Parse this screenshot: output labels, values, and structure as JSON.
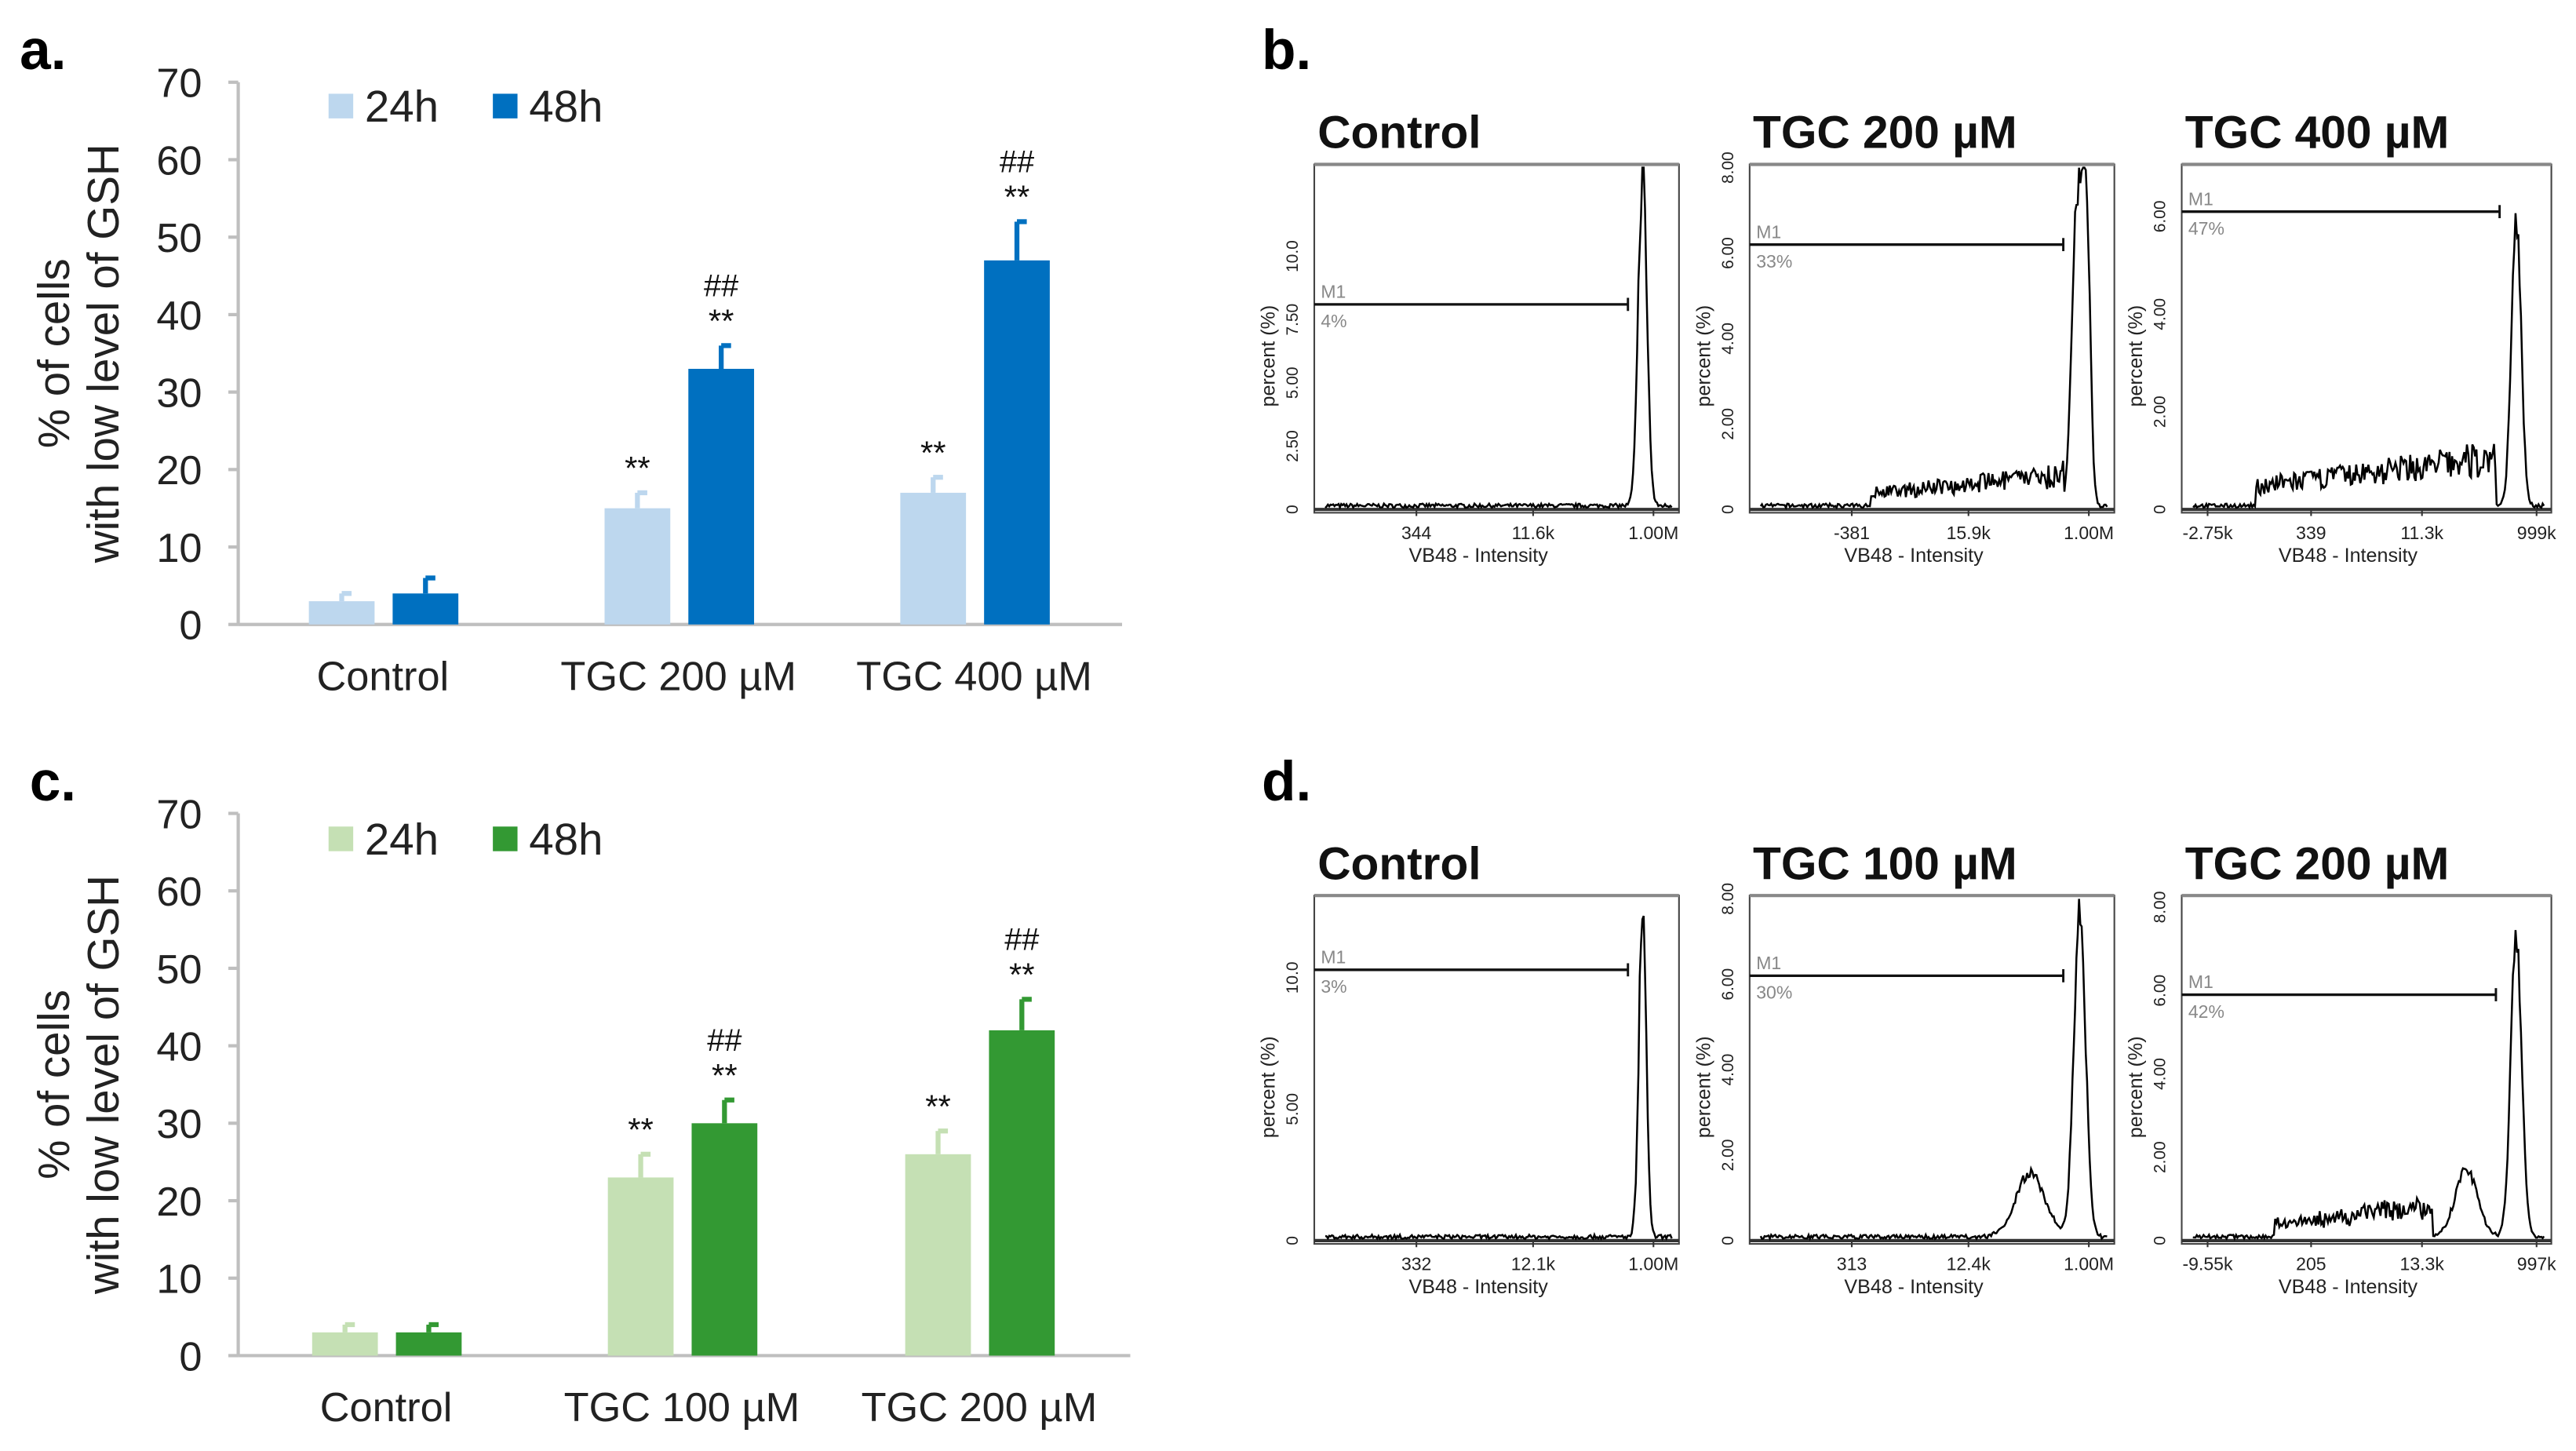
{
  "colors": {
    "a_24h": "#bdd7ee",
    "a_48h": "#0070c0",
    "c_24h": "#c5e0b4",
    "c_48h": "#339933",
    "axis": "#bfbfbf"
  },
  "chart_data": [
    {
      "panel": "a.",
      "type": "bar",
      "ylabel_line1": "% of cells",
      "ylabel_line2": "with low level of GSH",
      "ylim": [
        0,
        70
      ],
      "yticks": [
        "0",
        "10",
        "20",
        "30",
        "40",
        "50",
        "60",
        "70"
      ],
      "categories": [
        "Control",
        "TGC 200 µM",
        "TGC 400 µM"
      ],
      "legend": [
        "24h",
        "48h"
      ],
      "legend_position": "top-left",
      "series": [
        {
          "name": "24h",
          "values": [
            3,
            15,
            17
          ],
          "errors": [
            1,
            2,
            2
          ],
          "annotations": [
            [],
            [
              "**"
            ],
            [
              "**"
            ]
          ]
        },
        {
          "name": "48h",
          "values": [
            4,
            33,
            47
          ],
          "errors": [
            2,
            3,
            5
          ],
          "annotations": [
            [],
            [
              "##",
              "**"
            ],
            [
              "##",
              "**"
            ]
          ]
        }
      ]
    },
    {
      "panel": "c.",
      "type": "bar",
      "ylabel_line1": "% of cells",
      "ylabel_line2": "with low level of GSH",
      "ylim": [
        0,
        70
      ],
      "yticks": [
        "0",
        "10",
        "20",
        "30",
        "40",
        "50",
        "60",
        "70"
      ],
      "categories": [
        "Control",
        "TGC 100 µM",
        "TGC 200 µM"
      ],
      "legend": [
        "24h",
        "48h"
      ],
      "legend_position": "top-left",
      "series": [
        {
          "name": "24h",
          "values": [
            3,
            23,
            26
          ],
          "errors": [
            1,
            3,
            3
          ],
          "annotations": [
            [],
            [
              "**"
            ],
            [
              "**"
            ]
          ]
        },
        {
          "name": "48h",
          "values": [
            3,
            30,
            42
          ],
          "errors": [
            1,
            3,
            4
          ],
          "annotations": [
            [],
            [
              "##",
              "**"
            ],
            [
              "##",
              "**"
            ]
          ]
        }
      ]
    },
    {
      "panel": "b.",
      "type": "line",
      "plots": [
        {
          "title": "Control",
          "ylabel": "percent (%)",
          "xlabel": "VB48 - Intensity",
          "ymax": 13.5,
          "yticks": [
            [
              "0",
              0
            ],
            [
              "2.50",
              2.5
            ],
            [
              "5.00",
              5
            ],
            [
              "7.50",
              7.5
            ],
            [
              "10.0",
              10
            ]
          ],
          "xticks": [
            "344",
            "11.6k",
            "1.00M"
          ],
          "gate": "M1",
          "gate_pct": "4%",
          "gate_level": 8.1
        },
        {
          "title": "TGC 200 µM",
          "ylabel": "percent (%)",
          "xlabel": "VB48 - Intensity",
          "ymax": 8.0,
          "yticks": [
            [
              "0",
              0
            ],
            [
              "2.00",
              2
            ],
            [
              "4.00",
              4
            ],
            [
              "6.00",
              6
            ],
            [
              "8.00",
              8
            ]
          ],
          "xticks": [
            "-381",
            "15.9k",
            "1.00M"
          ],
          "gate": "M1",
          "gate_pct": "33%",
          "gate_level": 6.2
        },
        {
          "title": "TGC 400 µM",
          "ylabel": "percent (%)",
          "xlabel": "VB48 - Intensity",
          "ymax": 7.0,
          "yticks": [
            [
              "0",
              0
            ],
            [
              "2.00",
              2
            ],
            [
              "4.00",
              4
            ],
            [
              "6.00",
              6
            ]
          ],
          "xticks": [
            "-2.75k",
            "339",
            "11.3k",
            "999k"
          ],
          "gate": "M1",
          "gate_pct": "47%",
          "gate_level": 6.1
        }
      ]
    },
    {
      "panel": "d.",
      "type": "line",
      "plots": [
        {
          "title": "Control",
          "ylabel": "percent (%)",
          "xlabel": "VB48 - Intensity",
          "ymax": 13.0,
          "yticks": [
            [
              "0",
              0
            ],
            [
              "5.00",
              5
            ],
            [
              "10.0",
              10
            ]
          ],
          "xticks": [
            "332",
            "12.1k",
            "1.00M"
          ],
          "gate": "M1",
          "gate_pct": "3%",
          "gate_level": 10.3
        },
        {
          "title": "TGC 100 µM",
          "ylabel": "percent (%)",
          "xlabel": "VB48 - Intensity",
          "ymax": 8.0,
          "yticks": [
            [
              "0",
              0
            ],
            [
              "2.00",
              2
            ],
            [
              "4.00",
              4
            ],
            [
              "6.00",
              6
            ],
            [
              "8.00",
              8
            ]
          ],
          "xticks": [
            "313",
            "12.4k",
            "1.00M"
          ],
          "gate": "M1",
          "gate_pct": "30%",
          "gate_level": 6.2
        },
        {
          "title": "TGC 200 µM",
          "ylabel": "percent (%)",
          "xlabel": "VB48 - Intensity",
          "ymax": 8.2,
          "yticks": [
            [
              "0",
              0
            ],
            [
              "2.00",
              2
            ],
            [
              "4.00",
              4
            ],
            [
              "6.00",
              6
            ],
            [
              "8.00",
              8
            ]
          ],
          "xticks": [
            "-9.55k",
            "205",
            "13.3k",
            "997k"
          ],
          "gate": "M1",
          "gate_pct": "42%",
          "gate_level": 5.9
        }
      ]
    }
  ]
}
